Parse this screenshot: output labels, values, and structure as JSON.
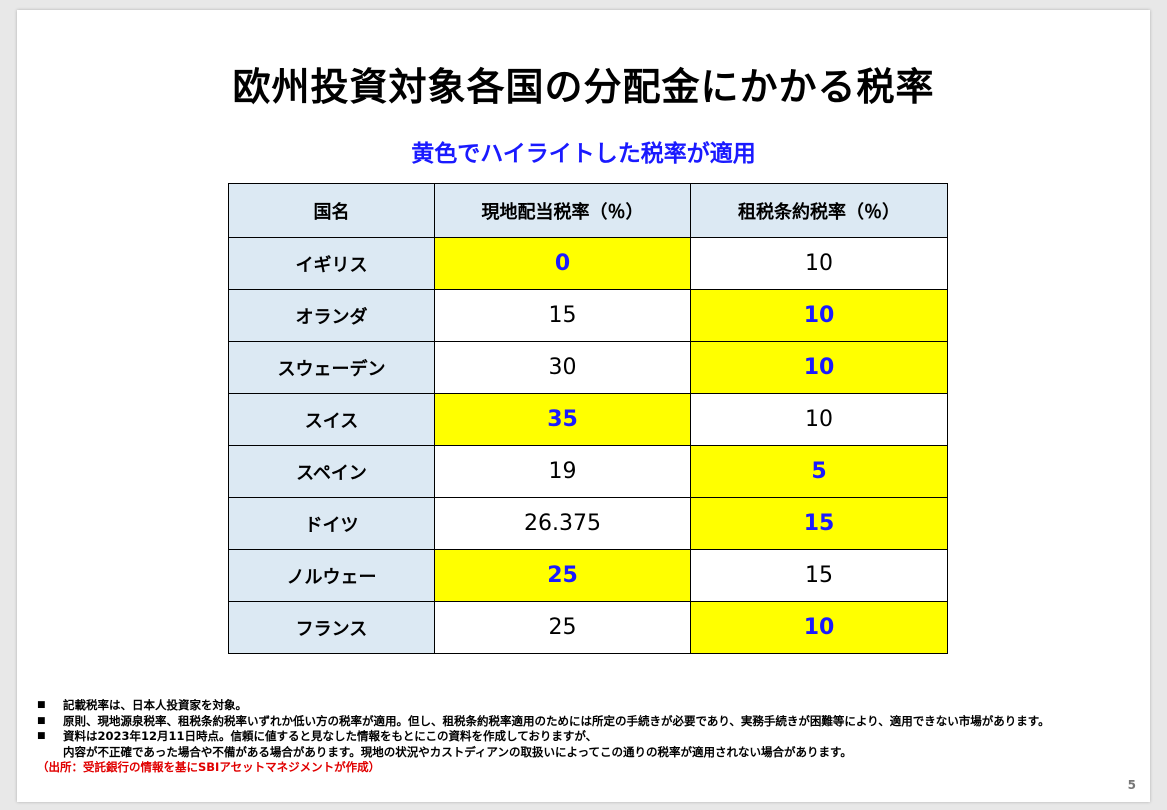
{
  "title": "欧州投資対象各国の分配金にかかる税率",
  "subtitle": "黄色でハイライトした税率が適用",
  "table": {
    "headers": [
      "国名",
      "現地配当税率（％）",
      "租税条約税率（％）"
    ],
    "rows": [
      {
        "country": "イギリス",
        "local": "0",
        "treaty": "10",
        "highlight": "local"
      },
      {
        "country": "オランダ",
        "local": "15",
        "treaty": "10",
        "highlight": "treaty"
      },
      {
        "country": "スウェーデン",
        "local": "30",
        "treaty": "10",
        "highlight": "treaty"
      },
      {
        "country": "スイス",
        "local": "35",
        "treaty": "10",
        "highlight": "local"
      },
      {
        "country": "スペイン",
        "local": "19",
        "treaty": "5",
        "highlight": "treaty"
      },
      {
        "country": "ドイツ",
        "local": "26.375",
        "treaty": "15",
        "highlight": "treaty"
      },
      {
        "country": "ノルウェー",
        "local": "25",
        "treaty": "15",
        "highlight": "local"
      },
      {
        "country": "フランス",
        "local": "25",
        "treaty": "10",
        "highlight": "treaty"
      }
    ]
  },
  "notes": {
    "bullet": "■",
    "items": [
      "記載税率は、日本人投資家を対象。",
      "原則、現地源泉税率、租税条約税率いずれか低い方の税率が適用。但し、租税条約税率適用のためには所定の手続きが必要であり、実務手続きが困難等により、適用できない市場があります。",
      "資料は2023年12月11日時点。信頼に値すると見なした情報をもとにこの資料を作成しておりますが、"
    ],
    "continuation": "内容が不正確であった場合や不備がある場合があります。現地の状況やカストディアンの取扱いによってこの通りの税率が適用されない場合があります。",
    "source": "（出所：受託銀行の情報を基にSBIアセットマネジメントが作成）"
  },
  "page_number": "5",
  "colors": {
    "highlight": "#ffff00",
    "highlight_text": "#1a1aff",
    "header_bg": "#dce9f3",
    "subtitle": "#1a1aff",
    "source": "#e00000"
  }
}
